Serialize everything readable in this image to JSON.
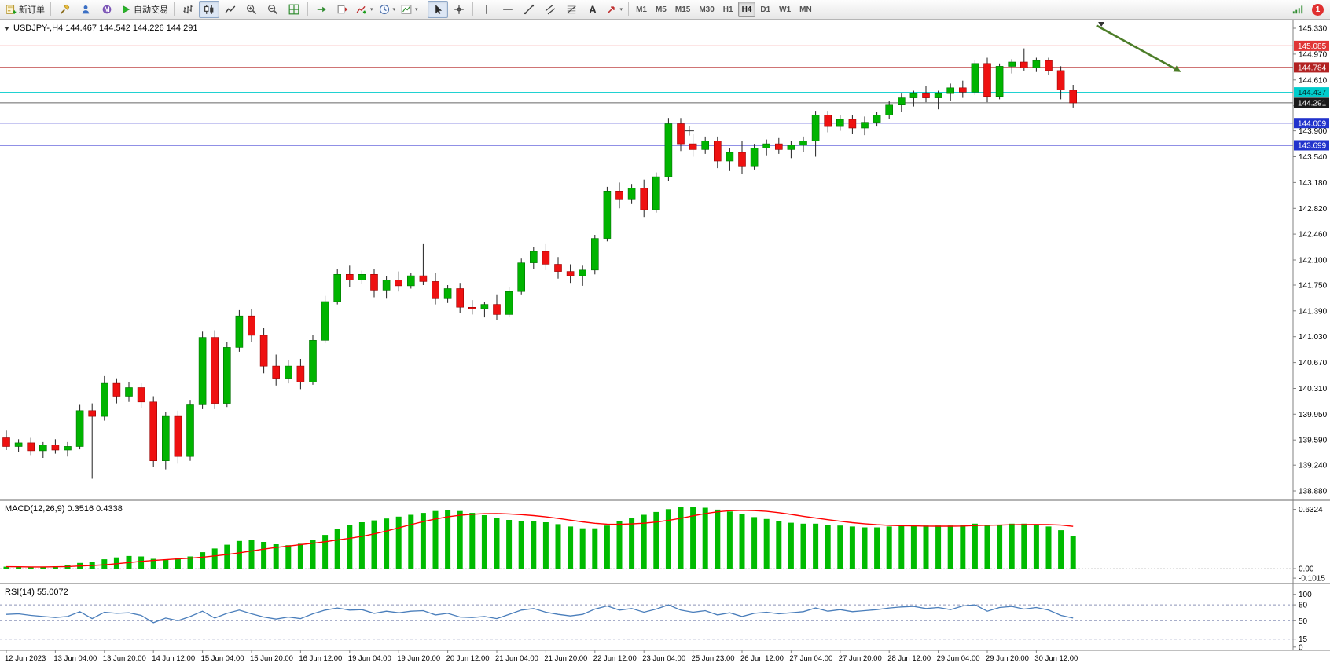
{
  "toolbar": {
    "items": [
      {
        "kind": "button",
        "name": "new-order-button",
        "icon": "new-order",
        "label": "新订单"
      },
      {
        "kind": "sep"
      },
      {
        "kind": "button",
        "name": "metaeditor-button",
        "icon": "metaeditor"
      },
      {
        "kind": "button",
        "name": "market-watch-button",
        "icon": "market"
      },
      {
        "kind": "button",
        "name": "community-button",
        "icon": "community"
      },
      {
        "kind": "button",
        "name": "autotrading-button",
        "icon": "autotrading",
        "label": "自动交易"
      },
      {
        "kind": "sep"
      },
      {
        "kind": "button",
        "name": "bar-chart-button",
        "icon": "bars-chart"
      },
      {
        "kind": "button",
        "name": "candlestick-chart-button",
        "icon": "candles-chart",
        "active": true
      },
      {
        "kind": "button",
        "name": "line-chart-button",
        "icon": "line-chart"
      },
      {
        "kind": "button",
        "name": "zoom-in-button",
        "icon": "zoom-in"
      },
      {
        "kind": "button",
        "name": "zoom-out-button",
        "icon": "zoom-out"
      },
      {
        "kind": "button",
        "name": "tile-windows-button",
        "icon": "tile-windows"
      },
      {
        "kind": "sep"
      },
      {
        "kind": "button",
        "name": "auto-scroll-button",
        "icon": "auto-scroll"
      },
      {
        "kind": "button",
        "name": "chart-shift-button",
        "icon": "chart-shift"
      },
      {
        "kind": "button",
        "name": "indicators-button",
        "icon": "indicators",
        "dropdown": true
      },
      {
        "kind": "button",
        "name": "periods-button",
        "icon": "periods",
        "dropdown": true
      },
      {
        "kind": "button",
        "name": "templates-button",
        "icon": "templates",
        "dropdown": true
      },
      {
        "kind": "sep"
      },
      {
        "kind": "button",
        "name": "cursor-button",
        "icon": "cursor",
        "active": true
      },
      {
        "kind": "button",
        "name": "crosshair-button",
        "icon": "crosshair"
      },
      {
        "kind": "sep"
      },
      {
        "kind": "button",
        "name": "vertical-line-button",
        "icon": "vline"
      },
      {
        "kind": "button",
        "name": "horizontal-line-button",
        "icon": "hline"
      },
      {
        "kind": "button",
        "name": "trendline-button",
        "icon": "trendline"
      },
      {
        "kind": "button",
        "name": "equidistant-channel-button",
        "icon": "channel"
      },
      {
        "kind": "button",
        "name": "fibonacci-button",
        "icon": "fibonacci"
      },
      {
        "kind": "button",
        "name": "text-button",
        "icon": "text"
      },
      {
        "kind": "button",
        "name": "arrows-button",
        "icon": "arrows",
        "dropdown": true
      },
      {
        "kind": "sep"
      },
      {
        "kind": "timeframes"
      },
      {
        "kind": "spacer"
      },
      {
        "kind": "button",
        "name": "connection-status-button",
        "icon": "connection"
      },
      {
        "kind": "badge",
        "name": "notifications-badge"
      }
    ],
    "timeframes": [
      "M1",
      "M5",
      "M15",
      "M30",
      "H1",
      "H4",
      "D1",
      "W1",
      "MN"
    ],
    "active_timeframe": "H4",
    "notification_count": "1"
  },
  "chart": {
    "header": "USDJPY-,H4 144.467 144.542 144.226 144.291",
    "symbol": "USDJPY-",
    "period": "H4"
  },
  "indicators": {
    "macd": {
      "label": "MACD(12,26,9) 0.3516 0.4338"
    },
    "rsi": {
      "label": "RSI(14) 55.0072"
    }
  },
  "chart_data": {
    "type": "candlestick",
    "symbol": "USDJPY-",
    "timeframe": "H4",
    "current_bar": {
      "open": 144.467,
      "high": 144.542,
      "low": 144.226,
      "close": 144.291
    },
    "ylim": [
      138.76,
      145.44
    ],
    "price_ticks": [
      "145.330",
      "144.970",
      "144.610",
      "144.250",
      "143.900",
      "143.540",
      "143.180",
      "142.820",
      "142.460",
      "142.100",
      "141.750",
      "141.390",
      "141.030",
      "140.670",
      "140.310",
      "139.950",
      "139.590",
      "139.240",
      "138.880"
    ],
    "time_labels": [
      "12 Jun 2023",
      "13 Jun 04:00",
      "13 Jun 20:00",
      "14 Jun 12:00",
      "15 Jun 04:00",
      "15 Jun 20:00",
      "16 Jun 12:00",
      "19 Jun 04:00",
      "19 Jun 20:00",
      "20 Jun 12:00",
      "21 Jun 04:00",
      "21 Jun 20:00",
      "22 Jun 12:00",
      "23 Jun 04:00",
      "25 Jun 23:00",
      "26 Jun 12:00",
      "27 Jun 04:00",
      "27 Jun 20:00",
      "28 Jun 12:00",
      "29 Jun 04:00",
      "29 Jun 20:00",
      "30 Jun 12:00"
    ],
    "label_every_n_bars": 4,
    "candles": [
      [
        139.62,
        139.72,
        139.45,
        139.5
      ],
      [
        139.5,
        139.6,
        139.42,
        139.55
      ],
      [
        139.55,
        139.62,
        139.38,
        139.44
      ],
      [
        139.44,
        139.56,
        139.34,
        139.52
      ],
      [
        139.52,
        139.6,
        139.4,
        139.45
      ],
      [
        139.45,
        139.56,
        139.36,
        139.5
      ],
      [
        139.5,
        140.08,
        139.46,
        140.0
      ],
      [
        140.0,
        140.1,
        139.05,
        139.92
      ],
      [
        139.92,
        140.48,
        139.86,
        140.38
      ],
      [
        140.38,
        140.45,
        140.1,
        140.2
      ],
      [
        140.2,
        140.4,
        140.12,
        140.32
      ],
      [
        140.32,
        140.38,
        140.04,
        140.12
      ],
      [
        140.12,
        140.2,
        139.22,
        139.3
      ],
      [
        139.3,
        139.98,
        139.18,
        139.92
      ],
      [
        139.92,
        140.0,
        139.26,
        139.36
      ],
      [
        139.36,
        140.15,
        139.3,
        140.08
      ],
      [
        140.08,
        141.1,
        140.02,
        141.02
      ],
      [
        141.02,
        141.12,
        140.02,
        140.1
      ],
      [
        140.1,
        140.95,
        140.05,
        140.88
      ],
      [
        140.88,
        141.4,
        140.82,
        141.32
      ],
      [
        141.32,
        141.42,
        140.95,
        141.05
      ],
      [
        141.05,
        141.15,
        140.52,
        140.62
      ],
      [
        140.62,
        140.78,
        140.35,
        140.45
      ],
      [
        140.45,
        140.7,
        140.38,
        140.62
      ],
      [
        140.62,
        140.72,
        140.3,
        140.4
      ],
      [
        140.4,
        141.05,
        140.36,
        140.98
      ],
      [
        140.98,
        141.6,
        140.94,
        141.52
      ],
      [
        141.52,
        141.98,
        141.48,
        141.9
      ],
      [
        141.9,
        142.02,
        141.72,
        141.82
      ],
      [
        141.82,
        141.95,
        141.76,
        141.9
      ],
      [
        141.9,
        141.98,
        141.58,
        141.68
      ],
      [
        141.68,
        141.88,
        141.56,
        141.82
      ],
      [
        141.82,
        141.94,
        141.66,
        141.74
      ],
      [
        141.74,
        141.92,
        141.7,
        141.88
      ],
      [
        141.88,
        142.32,
        141.75,
        141.8
      ],
      [
        141.8,
        141.92,
        141.48,
        141.56
      ],
      [
        141.56,
        141.75,
        141.5,
        141.7
      ],
      [
        141.7,
        141.78,
        141.36,
        141.44
      ],
      [
        141.44,
        141.54,
        141.34,
        141.42
      ],
      [
        141.42,
        141.52,
        141.3,
        141.48
      ],
      [
        141.48,
        141.62,
        141.26,
        141.34
      ],
      [
        141.34,
        141.72,
        141.3,
        141.66
      ],
      [
        141.66,
        142.12,
        141.62,
        142.06
      ],
      [
        142.06,
        142.28,
        141.98,
        142.22
      ],
      [
        142.22,
        142.32,
        141.96,
        142.04
      ],
      [
        142.04,
        142.14,
        141.84,
        141.94
      ],
      [
        141.94,
        142.04,
        141.78,
        141.88
      ],
      [
        141.88,
        142.02,
        141.74,
        141.96
      ],
      [
        141.96,
        142.45,
        141.9,
        142.4
      ],
      [
        142.4,
        143.12,
        142.36,
        143.06
      ],
      [
        143.06,
        143.18,
        142.82,
        142.94
      ],
      [
        142.94,
        143.16,
        142.88,
        143.1
      ],
      [
        143.1,
        143.22,
        142.7,
        142.8
      ],
      [
        142.8,
        143.32,
        142.76,
        143.26
      ],
      [
        143.26,
        144.08,
        143.2,
        144.0
      ],
      [
        144.0,
        144.08,
        143.62,
        143.72
      ],
      [
        143.72,
        143.86,
        143.54,
        143.64
      ],
      [
        143.64,
        143.82,
        143.58,
        143.76
      ],
      [
        143.76,
        143.82,
        143.38,
        143.48
      ],
      [
        143.48,
        143.66,
        143.34,
        143.6
      ],
      [
        143.6,
        143.76,
        143.3,
        143.4
      ],
      [
        143.4,
        143.72,
        143.36,
        143.66
      ],
      [
        143.66,
        143.78,
        143.56,
        143.72
      ],
      [
        143.72,
        143.8,
        143.58,
        143.64
      ],
      [
        143.64,
        143.76,
        143.52,
        143.7
      ],
      [
        143.7,
        143.82,
        143.6,
        143.76
      ],
      [
        143.76,
        144.18,
        143.54,
        144.12
      ],
      [
        144.12,
        144.18,
        143.88,
        143.96
      ],
      [
        143.96,
        144.12,
        143.9,
        144.06
      ],
      [
        144.06,
        144.12,
        143.86,
        143.94
      ],
      [
        143.94,
        144.1,
        143.84,
        144.02
      ],
      [
        144.02,
        144.16,
        143.96,
        144.12
      ],
      [
        144.12,
        144.32,
        144.06,
        144.26
      ],
      [
        144.26,
        144.42,
        144.16,
        144.36
      ],
      [
        144.36,
        144.46,
        144.24,
        144.42
      ],
      [
        144.42,
        144.52,
        144.3,
        144.36
      ],
      [
        144.36,
        144.46,
        144.2,
        144.42
      ],
      [
        144.42,
        144.56,
        144.32,
        144.5
      ],
      [
        144.5,
        144.6,
        144.36,
        144.44
      ],
      [
        144.44,
        144.88,
        144.4,
        144.84
      ],
      [
        144.84,
        144.92,
        144.3,
        144.38
      ],
      [
        144.38,
        144.84,
        144.34,
        144.8
      ],
      [
        144.8,
        144.9,
        144.7,
        144.86
      ],
      [
        144.86,
        145.05,
        144.74,
        144.78
      ],
      [
        144.78,
        144.92,
        144.72,
        144.88
      ],
      [
        144.88,
        144.92,
        144.68,
        144.74
      ],
      [
        144.74,
        144.8,
        144.34,
        144.47
      ],
      [
        144.467,
        144.542,
        144.226,
        144.291
      ]
    ],
    "hlines": [
      {
        "name": "resistance-line-1",
        "price": 145.085,
        "label": "145.085",
        "line_color": "#ee3333",
        "label_bg": "#e03636",
        "label_fg": "#ffffff"
      },
      {
        "name": "resistance-line-2",
        "price": 144.784,
        "label": "144.784",
        "line_color": "#b22222",
        "label_bg": "#b22222",
        "label_fg": "#ffffff"
      },
      {
        "name": "support-line-cyan",
        "price": 144.437,
        "label": "144.437",
        "line_color": "#00cccc",
        "label_bg": "#00cccc",
        "label_fg": "#003333"
      },
      {
        "name": "bid-price-line",
        "price": 144.291,
        "label": "144.291",
        "line_color": "#666666",
        "label_bg": "#1a1a1a",
        "label_fg": "#ffffff"
      },
      {
        "name": "support-line-blue-1",
        "price": 144.009,
        "label": "144.009",
        "line_color": "#2222cc",
        "label_bg": "#2233cc",
        "label_fg": "#ffffff"
      },
      {
        "name": "support-line-blue-2",
        "price": 143.699,
        "label": "143.699",
        "line_color": "#2222cc",
        "label_bg": "#2233cc",
        "label_fg": "#ffffff"
      }
    ],
    "macd": {
      "params": "12,26,9",
      "main_last": 0.3516,
      "signal_last": 0.4338,
      "axis_labels": [
        "0.6324",
        "0.00",
        "-0.1015"
      ],
      "ylim": [
        -0.151,
        0.713
      ],
      "values": [
        0.02,
        0.018,
        0.015,
        0.018,
        0.025,
        0.035,
        0.06,
        0.075,
        0.1,
        0.12,
        0.135,
        0.13,
        0.105,
        0.1,
        0.11,
        0.13,
        0.175,
        0.215,
        0.255,
        0.295,
        0.305,
        0.285,
        0.26,
        0.25,
        0.265,
        0.305,
        0.36,
        0.42,
        0.465,
        0.495,
        0.515,
        0.535,
        0.555,
        0.575,
        0.595,
        0.615,
        0.625,
        0.615,
        0.595,
        0.57,
        0.545,
        0.52,
        0.505,
        0.505,
        0.495,
        0.475,
        0.45,
        0.43,
        0.43,
        0.46,
        0.505,
        0.545,
        0.575,
        0.605,
        0.635,
        0.655,
        0.66,
        0.65,
        0.63,
        0.61,
        0.58,
        0.55,
        0.53,
        0.51,
        0.49,
        0.48,
        0.48,
        0.47,
        0.46,
        0.45,
        0.44,
        0.44,
        0.45,
        0.455,
        0.46,
        0.46,
        0.46,
        0.46,
        0.47,
        0.48,
        0.47,
        0.47,
        0.48,
        0.48,
        0.47,
        0.45,
        0.41,
        0.3516
      ]
    },
    "rsi": {
      "period": 14,
      "last": 55.0072,
      "levels": [
        80,
        50,
        15
      ],
      "axis_labels": [
        "100",
        "80",
        "50",
        "15",
        "0"
      ],
      "ylim": [
        0,
        100
      ],
      "values": [
        62,
        63,
        60,
        58,
        56,
        58,
        67,
        54,
        66,
        64,
        65,
        60,
        46,
        55,
        50,
        58,
        68,
        55,
        64,
        70,
        63,
        57,
        53,
        57,
        54,
        63,
        70,
        74,
        70,
        71,
        64,
        68,
        65,
        68,
        69,
        61,
        64,
        57,
        56,
        58,
        54,
        62,
        70,
        73,
        66,
        62,
        59,
        62,
        72,
        78,
        70,
        73,
        66,
        72,
        80,
        70,
        66,
        69,
        61,
        65,
        58,
        64,
        66,
        63,
        65,
        67,
        74,
        68,
        71,
        67,
        69,
        71,
        74,
        76,
        77,
        73,
        75,
        71,
        78,
        80,
        68,
        75,
        77,
        72,
        75,
        70,
        60,
        55.01
      ]
    },
    "annotations": {
      "arrow": {
        "from_bar": 88.9,
        "from_price": 145.37,
        "to_bar": 95.8,
        "to_price": 144.72,
        "color": "#4c7d28"
      },
      "end_marker_bar": 89.3,
      "cross": {
        "bar": 55.7,
        "price": 143.9
      }
    },
    "colors": {
      "background": "#ffffff",
      "bull": "#00b400",
      "bull_border": "#007000",
      "bear": "#ee1111",
      "bear_border": "#990000",
      "wick": "#222222",
      "macd_bar": "#00bb00",
      "macd_signal": "#ff0000",
      "rsi_line": "#4a7ebb",
      "level_dash": "#8c94b8",
      "axis_border": "#808080",
      "pane_separator": "#9a9a9a",
      "text": "#000000"
    }
  }
}
